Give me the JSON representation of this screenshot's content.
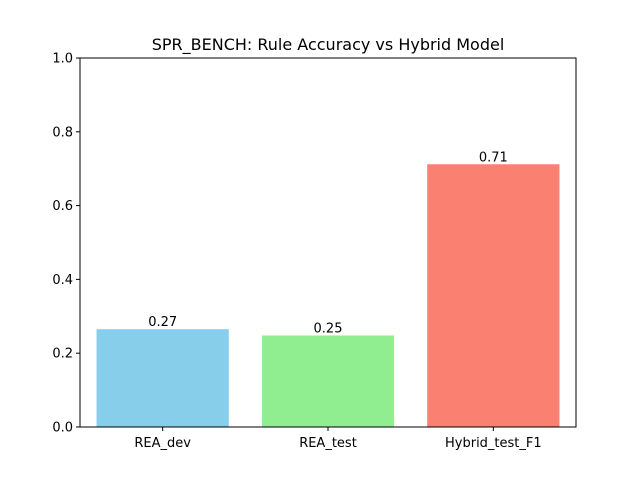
{
  "chart_data": {
    "type": "bar",
    "title": "SPR_BENCH: Rule Accuracy vs Hybrid Model",
    "xlabel": "",
    "ylabel": "",
    "categories": [
      "REA_dev",
      "REA_test",
      "Hybrid_test_F1"
    ],
    "values": [
      0.265,
      0.248,
      0.712
    ],
    "value_labels": [
      "0.27",
      "0.25",
      "0.71"
    ],
    "colors": [
      "#87ceeb",
      "#90ee90",
      "#fa8072"
    ],
    "ylim": [
      0,
      1.0
    ],
    "yticks": [
      0.0,
      0.2,
      0.4,
      0.6,
      0.8,
      1.0
    ],
    "ytick_labels": [
      "0.0",
      "0.2",
      "0.4",
      "0.6",
      "0.8",
      "1.0"
    ],
    "grid": false,
    "legend": "none"
  }
}
